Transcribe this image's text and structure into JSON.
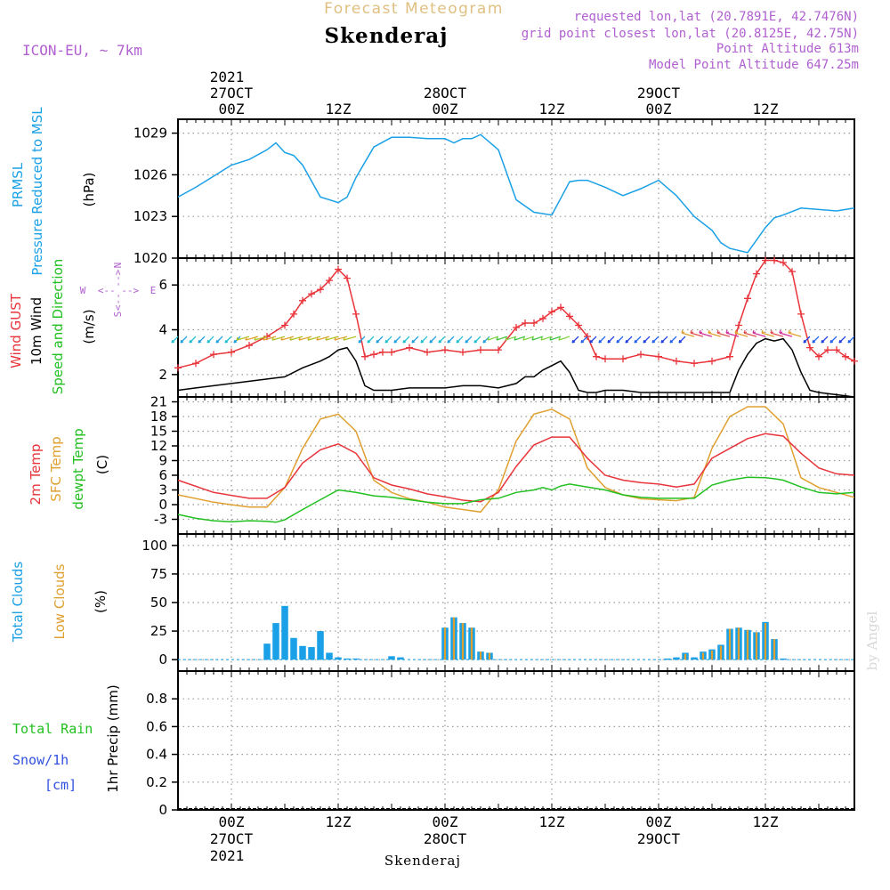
{
  "header": {
    "product": "Forecast Meteogram",
    "station": "Skenderaj",
    "model": "ICON-EU, ~ 7km",
    "requested": "requested lon,lat (20.7891E, 42.7476N)",
    "gridpoint": "grid point closest lon,lat (20.8125E, 42.75N)",
    "point_alt": "Point Altitude 613m",
    "model_alt": "Model Point Altitude 647.25m",
    "watermark": "by Angel",
    "footer": "Skenderaj"
  },
  "colors": {
    "pressure": "#1aa0e6",
    "gust": "#e8343a",
    "wind": "#000000",
    "temp": "#e8343a",
    "sfc": "#e0a030",
    "dewpt": "#22c020",
    "total_clouds": "#1aa0e6",
    "low_clouds": "#e0a030",
    "rain": "#22c020",
    "snow": "#3050e0",
    "header_purple": "#b060d0",
    "header_gold": "#e0c080"
  },
  "time_axis": {
    "year": "2021",
    "days": [
      {
        "t": 6,
        "date": "27OCT"
      },
      {
        "t": 30,
        "date": "28OCT"
      },
      {
        "t": 54,
        "date": "29OCT"
      }
    ],
    "ticks": [
      {
        "t": 6,
        "label": "00Z"
      },
      {
        "t": 18,
        "label": "12Z"
      },
      {
        "t": 30,
        "label": "00Z"
      },
      {
        "t": 42,
        "label": "12Z"
      },
      {
        "t": 54,
        "label": "00Z"
      },
      {
        "t": 66,
        "label": "12Z"
      }
    ],
    "t_range": [
      0,
      76
    ]
  },
  "panels": {
    "pressure": {
      "labels": [
        "PRMSL",
        "Pressure Reduced to MSL",
        "(hPa)"
      ],
      "yticks": [
        "1020",
        "1023",
        "1026",
        "1029"
      ]
    },
    "wind": {
      "labels": [
        "Wind GUST",
        "10m Wind",
        "Speed and Direction",
        "(m/s)"
      ],
      "yticks": [
        "2",
        "4",
        "6"
      ],
      "compass": {
        "n": "N",
        "s": "S",
        "w": "W",
        "e": "E"
      }
    },
    "temp": {
      "labels": [
        "2m Temp",
        "SFC Temp",
        "dewpt Temp",
        "(C)"
      ],
      "yticks": [
        "-3",
        "0",
        "3",
        "6",
        "9",
        "12",
        "15",
        "18",
        "21"
      ]
    },
    "clouds": {
      "labels": [
        "Total Clouds",
        "Low Clouds",
        "(%)"
      ],
      "yticks": [
        "0",
        "25",
        "50",
        "75",
        "100"
      ]
    },
    "precip": {
      "labels": [
        "Total Rain",
        "Snow/1h",
        "[cm]",
        "1hr Precip (mm)"
      ],
      "yticks": [
        "0",
        "0.2",
        "0.4",
        "0.6",
        "0.8"
      ]
    }
  },
  "chart_data": [
    {
      "type": "line",
      "title": "PRMSL Pressure Reduced to MSL",
      "ylabel": "(hPa)",
      "ylim": [
        1020,
        1030
      ],
      "series": [
        {
          "name": "PRMSL",
          "x": [
            0,
            2,
            4,
            6,
            8,
            10,
            11,
            12,
            13,
            14,
            16,
            18,
            19,
            20,
            22,
            24,
            26,
            28,
            30,
            31,
            32,
            33,
            34,
            36,
            38,
            40,
            42,
            44,
            45,
            46,
            48,
            50,
            52,
            54,
            56,
            58,
            60,
            61,
            62,
            64,
            66,
            67,
            68,
            70,
            72,
            74,
            76
          ],
          "y": [
            1024.4,
            1025.1,
            1025.9,
            1026.7,
            1027.1,
            1027.8,
            1028.3,
            1027.6,
            1027.4,
            1026.7,
            1024.4,
            1024.0,
            1024.4,
            1025.8,
            1028.0,
            1028.7,
            1028.7,
            1028.6,
            1028.6,
            1028.3,
            1028.6,
            1028.6,
            1028.9,
            1027.8,
            1024.2,
            1023.3,
            1023.1,
            1025.5,
            1025.6,
            1025.6,
            1025.1,
            1024.5,
            1025.0,
            1025.6,
            1024.5,
            1023.0,
            1022.0,
            1021.1,
            1020.7,
            1020.4,
            1022.2,
            1022.9,
            1023.1,
            1023.6,
            1023.5,
            1023.4,
            1023.6
          ]
        }
      ]
    },
    {
      "type": "line",
      "title": "Wind GUST / 10m Wind",
      "ylabel": "(m/s)",
      "ylim": [
        1,
        7.2
      ],
      "series": [
        {
          "name": "Wind GUST",
          "x": [
            0,
            2,
            4,
            6,
            8,
            10,
            12,
            13,
            14,
            15,
            16,
            17,
            18,
            19,
            20,
            21,
            22,
            23,
            24,
            26,
            28,
            30,
            32,
            34,
            36,
            38,
            39,
            40,
            41,
            42,
            43,
            44,
            45,
            46,
            47,
            48,
            50,
            52,
            54,
            56,
            58,
            60,
            62,
            63,
            64,
            65,
            66,
            67,
            68,
            69,
            70,
            71,
            72,
            73,
            74,
            75,
            76
          ],
          "y": [
            2.3,
            2.5,
            2.9,
            3.0,
            3.3,
            3.7,
            4.2,
            4.7,
            5.3,
            5.6,
            5.8,
            6.2,
            6.7,
            6.3,
            4.7,
            2.8,
            2.9,
            3.0,
            3.0,
            3.2,
            3.0,
            3.1,
            3.0,
            3.1,
            3.1,
            4.1,
            4.3,
            4.3,
            4.5,
            4.8,
            5.0,
            4.6,
            4.2,
            3.7,
            2.8,
            2.7,
            2.7,
            2.9,
            2.8,
            2.6,
            2.5,
            2.6,
            2.8,
            4.2,
            5.4,
            6.5,
            7.1,
            7.1,
            7.0,
            6.6,
            4.7,
            3.2,
            2.8,
            3.1,
            3.1,
            2.8,
            2.6
          ]
        },
        {
          "name": "10m Wind",
          "x": [
            0,
            2,
            4,
            6,
            8,
            10,
            12,
            14,
            16,
            17,
            18,
            19,
            20,
            21,
            22,
            23,
            24,
            26,
            28,
            30,
            32,
            34,
            36,
            38,
            39,
            40,
            41,
            42,
            43,
            44,
            45,
            46,
            47,
            48,
            50,
            52,
            54,
            56,
            58,
            60,
            62,
            63,
            64,
            65,
            66,
            67,
            68,
            69,
            70,
            71,
            72,
            74,
            76
          ],
          "y": [
            1.3,
            1.4,
            1.5,
            1.6,
            1.7,
            1.8,
            1.9,
            2.3,
            2.6,
            2.8,
            3.1,
            3.2,
            2.6,
            1.5,
            1.3,
            1.3,
            1.3,
            1.4,
            1.4,
            1.4,
            1.5,
            1.5,
            1.4,
            1.6,
            1.9,
            1.9,
            2.2,
            2.4,
            2.6,
            2.1,
            1.3,
            1.2,
            1.2,
            1.3,
            1.3,
            1.2,
            1.2,
            1.2,
            1.2,
            1.2,
            1.2,
            2.2,
            2.9,
            3.4,
            3.6,
            3.5,
            3.6,
            3.1,
            2.1,
            1.3,
            1.2,
            1.1,
            1.0
          ]
        }
      ]
    },
    {
      "type": "line",
      "title": "2m Temp / SFC Temp / dewpt Temp",
      "ylabel": "(C)",
      "ylim": [
        -6,
        22
      ],
      "series": [
        {
          "name": "2m Temp",
          "x": [
            0,
            4,
            8,
            10,
            12,
            14,
            16,
            18,
            20,
            22,
            24,
            26,
            28,
            30,
            32,
            34,
            36,
            38,
            40,
            42,
            44,
            46,
            48,
            50,
            52,
            54,
            56,
            58,
            60,
            62,
            64,
            66,
            68,
            70,
            72,
            74,
            76
          ],
          "y": [
            5.0,
            2.5,
            1.3,
            1.3,
            3.5,
            8.5,
            11.2,
            12.4,
            10.5,
            5.5,
            4.0,
            3.2,
            2.2,
            1.6,
            0.9,
            0.6,
            2.5,
            7.8,
            12.2,
            13.8,
            13.8,
            9.5,
            6.0,
            5.0,
            4.5,
            4.2,
            3.6,
            4.2,
            9.5,
            11.5,
            13.5,
            14.5,
            14.0,
            10.5,
            7.5,
            6.3,
            6.0
          ]
        },
        {
          "name": "SFC Temp",
          "x": [
            0,
            4,
            8,
            10,
            12,
            14,
            16,
            18,
            20,
            22,
            24,
            26,
            28,
            30,
            32,
            34,
            36,
            38,
            40,
            42,
            44,
            46,
            48,
            50,
            52,
            54,
            56,
            58,
            60,
            62,
            64,
            66,
            68,
            70,
            72,
            74,
            76
          ],
          "y": [
            2.0,
            0.5,
            -0.5,
            -0.5,
            3.5,
            11.5,
            17.5,
            18.5,
            15.0,
            5.0,
            2.5,
            1.2,
            0.5,
            -0.5,
            -1.0,
            -1.5,
            3.0,
            13.0,
            18.5,
            19.5,
            17.5,
            7.5,
            3.5,
            2.0,
            1.2,
            1.0,
            0.8,
            1.5,
            11.5,
            18.0,
            20.0,
            20.0,
            16.5,
            5.5,
            3.5,
            2.5,
            1.5
          ]
        },
        {
          "name": "dewpt Temp",
          "x": [
            0,
            2,
            4,
            6,
            8,
            10,
            11,
            12,
            14,
            16,
            18,
            20,
            22,
            24,
            26,
            28,
            30,
            32,
            34,
            36,
            38,
            40,
            41,
            42,
            43,
            44,
            46,
            48,
            50,
            52,
            54,
            56,
            58,
            60,
            62,
            64,
            66,
            67,
            68,
            70,
            72,
            74,
            76
          ],
          "y": [
            -2.0,
            -2.8,
            -3.3,
            -3.5,
            -3.3,
            -3.4,
            -3.6,
            -3.1,
            -1.0,
            1.0,
            3.0,
            2.5,
            1.8,
            1.5,
            1.0,
            0.5,
            0.2,
            0.2,
            1.0,
            1.3,
            2.5,
            3.0,
            3.5,
            3.0,
            3.8,
            4.2,
            3.6,
            3.0,
            2.0,
            1.5,
            1.3,
            1.3,
            1.3,
            4.0,
            5.0,
            5.6,
            5.5,
            5.3,
            5.0,
            3.6,
            2.5,
            2.2,
            2.5
          ]
        }
      ]
    },
    {
      "type": "bar",
      "title": "Total Clouds / Low Clouds",
      "ylabel": "(%)",
      "ylim": [
        -10,
        110
      ],
      "series": [
        {
          "name": "Total Clouds",
          "x": [
            10,
            11,
            12,
            13,
            14,
            15,
            16,
            17,
            18,
            19,
            20,
            24,
            25,
            30,
            31,
            32,
            33,
            34,
            35,
            55,
            56,
            57,
            58,
            59,
            60,
            61,
            62,
            63,
            64,
            65,
            66,
            67,
            68
          ],
          "y": [
            14,
            32,
            47,
            19,
            12,
            11,
            25,
            6,
            2,
            1,
            1,
            3,
            2,
            28,
            37,
            32,
            28,
            7,
            6,
            1,
            2,
            6,
            2,
            7,
            9,
            13,
            27,
            28,
            26,
            24,
            33,
            18,
            1
          ]
        },
        {
          "name": "Low Clouds",
          "x": [
            30,
            31,
            32,
            33,
            34,
            35,
            57,
            59,
            60,
            61,
            62,
            63,
            64,
            65,
            66,
            67
          ],
          "y": [
            28,
            37,
            32,
            28,
            7,
            6,
            5,
            6,
            8,
            12,
            27,
            28,
            26,
            24,
            32,
            18
          ]
        }
      ]
    },
    {
      "type": "bar",
      "title": "1hr Precip",
      "ylabel": "1hr Precip (mm)",
      "ylim": [
        0,
        1
      ],
      "series": [
        {
          "name": "Total Rain",
          "x": [],
          "y": []
        },
        {
          "name": "Snow/1h",
          "x": [],
          "y": []
        }
      ]
    }
  ]
}
